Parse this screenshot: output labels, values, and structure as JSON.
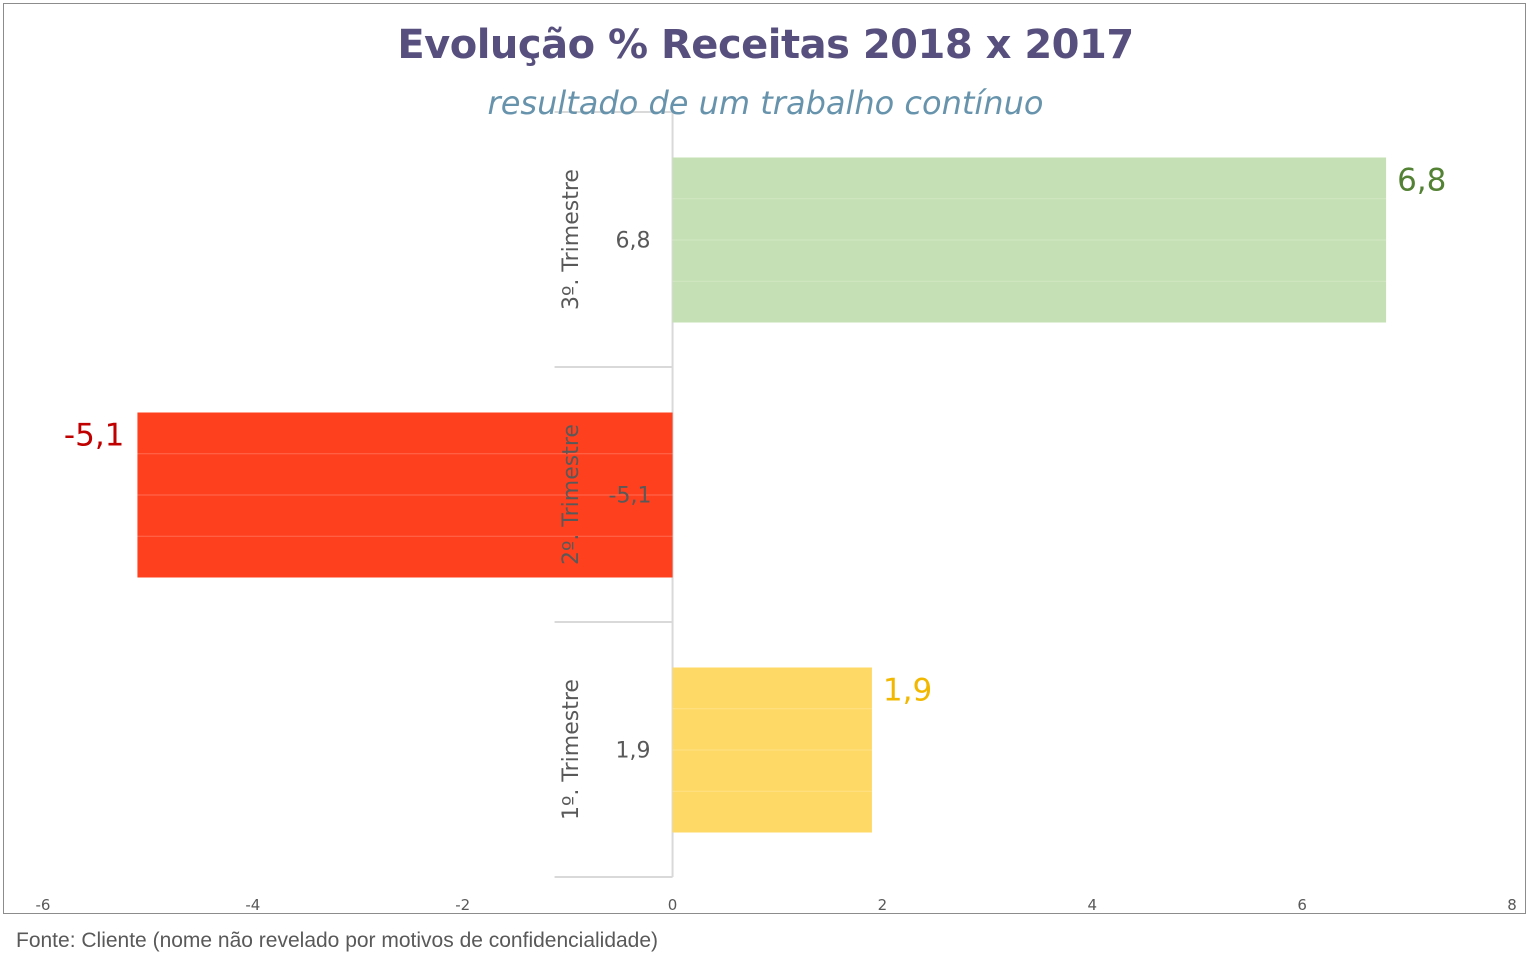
{
  "chart_data": {
    "type": "bar",
    "orientation": "horizontal",
    "title": "Evolução % Receitas 2018 x 2017",
    "subtitle": "resultado de um trabalho contínuo",
    "categories": [
      "1º. Trimestre",
      "2º. Trimestre",
      "3º. Trimestre"
    ],
    "values": [
      1.9,
      -5.1,
      6.8
    ],
    "value_labels": [
      "1,9",
      "-5,1",
      "6,8"
    ],
    "bar_colors": [
      "#ffd966",
      "#ff401f",
      "#c5e0b4"
    ],
    "label_colors": [
      "#f2b800",
      "#c00000",
      "#548235"
    ],
    "xlim": [
      -6,
      8
    ],
    "xticks": [
      -6,
      -4,
      -2,
      0,
      2,
      4,
      6,
      8
    ],
    "xtick_labels": [
      "-6",
      "-4",
      "-2",
      "0",
      "2",
      "4",
      "6",
      "8"
    ],
    "grid": false,
    "legend": "none"
  },
  "source_note": "Fonte: Cliente (nome não revelado por motivos de confidencialidade)"
}
